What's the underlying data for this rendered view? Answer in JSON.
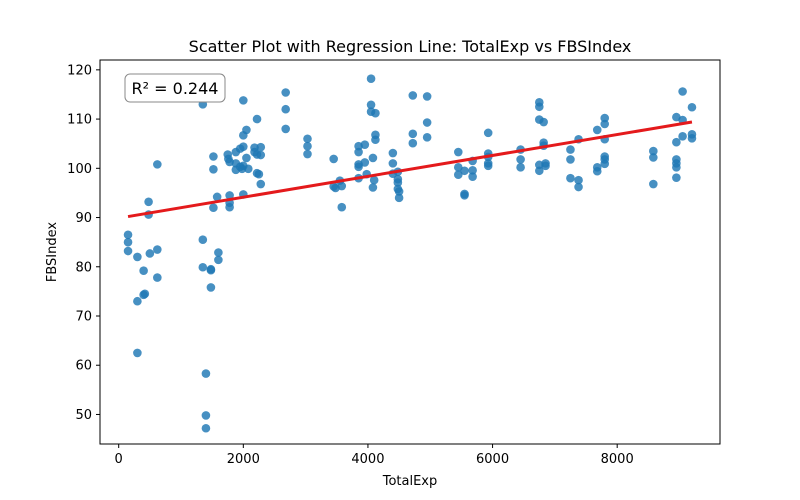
{
  "chart_data": {
    "type": "scatter",
    "title": "Scatter Plot with Regression Line: TotalExp vs FBSIndex",
    "xlabel": "TotalExp",
    "ylabel": "FBSIndex",
    "xlim": [
      -300,
      9650
    ],
    "ylim": [
      44,
      122
    ],
    "xticks": [
      0,
      2000,
      4000,
      6000,
      8000
    ],
    "yticks": [
      50,
      60,
      70,
      80,
      90,
      100,
      110,
      120
    ],
    "grid": false,
    "annotation": {
      "text": "R² = 0.244",
      "position": "top-left"
    },
    "colors": {
      "points": "#1f77b4",
      "regression": "#e41a1c"
    },
    "regression": {
      "x": [
        150,
        9200
      ],
      "y": [
        90.2,
        109.4
      ]
    },
    "points": [
      {
        "x": 150,
        "y": 86.5
      },
      {
        "x": 150,
        "y": 85.0
      },
      {
        "x": 150,
        "y": 83.2
      },
      {
        "x": 300,
        "y": 82.0
      },
      {
        "x": 300,
        "y": 73.0
      },
      {
        "x": 300,
        "y": 62.5
      },
      {
        "x": 400,
        "y": 79.2
      },
      {
        "x": 400,
        "y": 74.3
      },
      {
        "x": 420,
        "y": 74.5
      },
      {
        "x": 480,
        "y": 93.2
      },
      {
        "x": 480,
        "y": 90.6
      },
      {
        "x": 500,
        "y": 82.7
      },
      {
        "x": 620,
        "y": 100.8
      },
      {
        "x": 620,
        "y": 83.5
      },
      {
        "x": 620,
        "y": 77.8
      },
      {
        "x": 1350,
        "y": 113.0
      },
      {
        "x": 1350,
        "y": 85.5
      },
      {
        "x": 1350,
        "y": 79.9
      },
      {
        "x": 1400,
        "y": 58.3
      },
      {
        "x": 1400,
        "y": 49.8
      },
      {
        "x": 1400,
        "y": 47.2
      },
      {
        "x": 1480,
        "y": 79.5
      },
      {
        "x": 1480,
        "y": 79.3
      },
      {
        "x": 1480,
        "y": 75.8
      },
      {
        "x": 1520,
        "y": 102.4
      },
      {
        "x": 1520,
        "y": 99.8
      },
      {
        "x": 1520,
        "y": 92.0
      },
      {
        "x": 1580,
        "y": 94.2
      },
      {
        "x": 1600,
        "y": 82.9
      },
      {
        "x": 1600,
        "y": 81.4
      },
      {
        "x": 1750,
        "y": 102.8
      },
      {
        "x": 1760,
        "y": 101.9
      },
      {
        "x": 1780,
        "y": 101.3
      },
      {
        "x": 1780,
        "y": 94.5
      },
      {
        "x": 1780,
        "y": 93.0
      },
      {
        "x": 1780,
        "y": 92.1
      },
      {
        "x": 1880,
        "y": 103.3
      },
      {
        "x": 1880,
        "y": 101.0
      },
      {
        "x": 1880,
        "y": 99.7
      },
      {
        "x": 1950,
        "y": 104.0
      },
      {
        "x": 1950,
        "y": 100.3
      },
      {
        "x": 1980,
        "y": 99.9
      },
      {
        "x": 2000,
        "y": 113.8
      },
      {
        "x": 2000,
        "y": 106.7
      },
      {
        "x": 2000,
        "y": 104.4
      },
      {
        "x": 2000,
        "y": 100.5
      },
      {
        "x": 2000,
        "y": 94.7
      },
      {
        "x": 2050,
        "y": 107.8
      },
      {
        "x": 2050,
        "y": 102.1
      },
      {
        "x": 2080,
        "y": 99.9
      },
      {
        "x": 2180,
        "y": 104.2
      },
      {
        "x": 2180,
        "y": 103.3
      },
      {
        "x": 2220,
        "y": 110.0
      },
      {
        "x": 2220,
        "y": 102.8
      },
      {
        "x": 2220,
        "y": 99.0
      },
      {
        "x": 2250,
        "y": 98.8
      },
      {
        "x": 2280,
        "y": 104.3
      },
      {
        "x": 2280,
        "y": 102.7
      },
      {
        "x": 2280,
        "y": 96.8
      },
      {
        "x": 2680,
        "y": 115.4
      },
      {
        "x": 2680,
        "y": 112.0
      },
      {
        "x": 2680,
        "y": 108.0
      },
      {
        "x": 3030,
        "y": 106.0
      },
      {
        "x": 3030,
        "y": 104.5
      },
      {
        "x": 3030,
        "y": 102.9
      },
      {
        "x": 3450,
        "y": 101.9
      },
      {
        "x": 3450,
        "y": 96.3
      },
      {
        "x": 3480,
        "y": 96.0
      },
      {
        "x": 3550,
        "y": 97.5
      },
      {
        "x": 3580,
        "y": 96.4
      },
      {
        "x": 3580,
        "y": 92.1
      },
      {
        "x": 3850,
        "y": 104.5
      },
      {
        "x": 3850,
        "y": 103.3
      },
      {
        "x": 3850,
        "y": 100.8
      },
      {
        "x": 3850,
        "y": 100.3
      },
      {
        "x": 3850,
        "y": 98.0
      },
      {
        "x": 3950,
        "y": 104.8
      },
      {
        "x": 3950,
        "y": 101.2
      },
      {
        "x": 3980,
        "y": 98.8
      },
      {
        "x": 4050,
        "y": 118.2
      },
      {
        "x": 4050,
        "y": 112.9
      },
      {
        "x": 4050,
        "y": 111.5
      },
      {
        "x": 4080,
        "y": 102.1
      },
      {
        "x": 4080,
        "y": 96.1
      },
      {
        "x": 4100,
        "y": 97.6
      },
      {
        "x": 4120,
        "y": 111.2
      },
      {
        "x": 4120,
        "y": 106.8
      },
      {
        "x": 4120,
        "y": 105.8
      },
      {
        "x": 4400,
        "y": 103.1
      },
      {
        "x": 4400,
        "y": 101.0
      },
      {
        "x": 4400,
        "y": 98.9
      },
      {
        "x": 4480,
        "y": 99.3
      },
      {
        "x": 4480,
        "y": 97.8
      },
      {
        "x": 4480,
        "y": 97.1
      },
      {
        "x": 4480,
        "y": 95.8
      },
      {
        "x": 4500,
        "y": 95.3
      },
      {
        "x": 4500,
        "y": 94.0
      },
      {
        "x": 4720,
        "y": 114.8
      },
      {
        "x": 4720,
        "y": 107.0
      },
      {
        "x": 4720,
        "y": 105.1
      },
      {
        "x": 4950,
        "y": 114.6
      },
      {
        "x": 4950,
        "y": 109.3
      },
      {
        "x": 4950,
        "y": 106.3
      },
      {
        "x": 5450,
        "y": 103.3
      },
      {
        "x": 5450,
        "y": 100.2
      },
      {
        "x": 5450,
        "y": 98.7
      },
      {
        "x": 5550,
        "y": 99.5
      },
      {
        "x": 5550,
        "y": 94.8
      },
      {
        "x": 5550,
        "y": 94.5
      },
      {
        "x": 5680,
        "y": 101.5
      },
      {
        "x": 5680,
        "y": 99.6
      },
      {
        "x": 5680,
        "y": 98.3
      },
      {
        "x": 5930,
        "y": 107.2
      },
      {
        "x": 5930,
        "y": 103.0
      },
      {
        "x": 5930,
        "y": 102.3
      },
      {
        "x": 5930,
        "y": 101.0
      },
      {
        "x": 5930,
        "y": 100.5
      },
      {
        "x": 6450,
        "y": 103.8
      },
      {
        "x": 6450,
        "y": 101.8
      },
      {
        "x": 6450,
        "y": 100.2
      },
      {
        "x": 6750,
        "y": 113.4
      },
      {
        "x": 6750,
        "y": 112.5
      },
      {
        "x": 6750,
        "y": 109.9
      },
      {
        "x": 6750,
        "y": 100.7
      },
      {
        "x": 6750,
        "y": 99.5
      },
      {
        "x": 6820,
        "y": 109.4
      },
      {
        "x": 6820,
        "y": 105.2
      },
      {
        "x": 6820,
        "y": 104.6
      },
      {
        "x": 6850,
        "y": 101.0
      },
      {
        "x": 6850,
        "y": 100.5
      },
      {
        "x": 7250,
        "y": 103.8
      },
      {
        "x": 7250,
        "y": 101.8
      },
      {
        "x": 7250,
        "y": 98.0
      },
      {
        "x": 7380,
        "y": 105.9
      },
      {
        "x": 7380,
        "y": 97.6
      },
      {
        "x": 7380,
        "y": 96.2
      },
      {
        "x": 7680,
        "y": 107.8
      },
      {
        "x": 7680,
        "y": 100.2
      },
      {
        "x": 7680,
        "y": 99.4
      },
      {
        "x": 7800,
        "y": 110.2
      },
      {
        "x": 7800,
        "y": 109.0
      },
      {
        "x": 7800,
        "y": 105.9
      },
      {
        "x": 7800,
        "y": 102.4
      },
      {
        "x": 7800,
        "y": 101.8
      },
      {
        "x": 7800,
        "y": 100.9
      },
      {
        "x": 8580,
        "y": 103.5
      },
      {
        "x": 8580,
        "y": 102.2
      },
      {
        "x": 8580,
        "y": 96.8
      },
      {
        "x": 8950,
        "y": 110.4
      },
      {
        "x": 8950,
        "y": 105.3
      },
      {
        "x": 8950,
        "y": 101.8
      },
      {
        "x": 8950,
        "y": 101.0
      },
      {
        "x": 8950,
        "y": 100.2
      },
      {
        "x": 8950,
        "y": 98.1
      },
      {
        "x": 9050,
        "y": 115.6
      },
      {
        "x": 9050,
        "y": 109.8
      },
      {
        "x": 9050,
        "y": 106.5
      },
      {
        "x": 9200,
        "y": 112.4
      },
      {
        "x": 9200,
        "y": 106.9
      },
      {
        "x": 9200,
        "y": 106.1
      }
    ]
  }
}
